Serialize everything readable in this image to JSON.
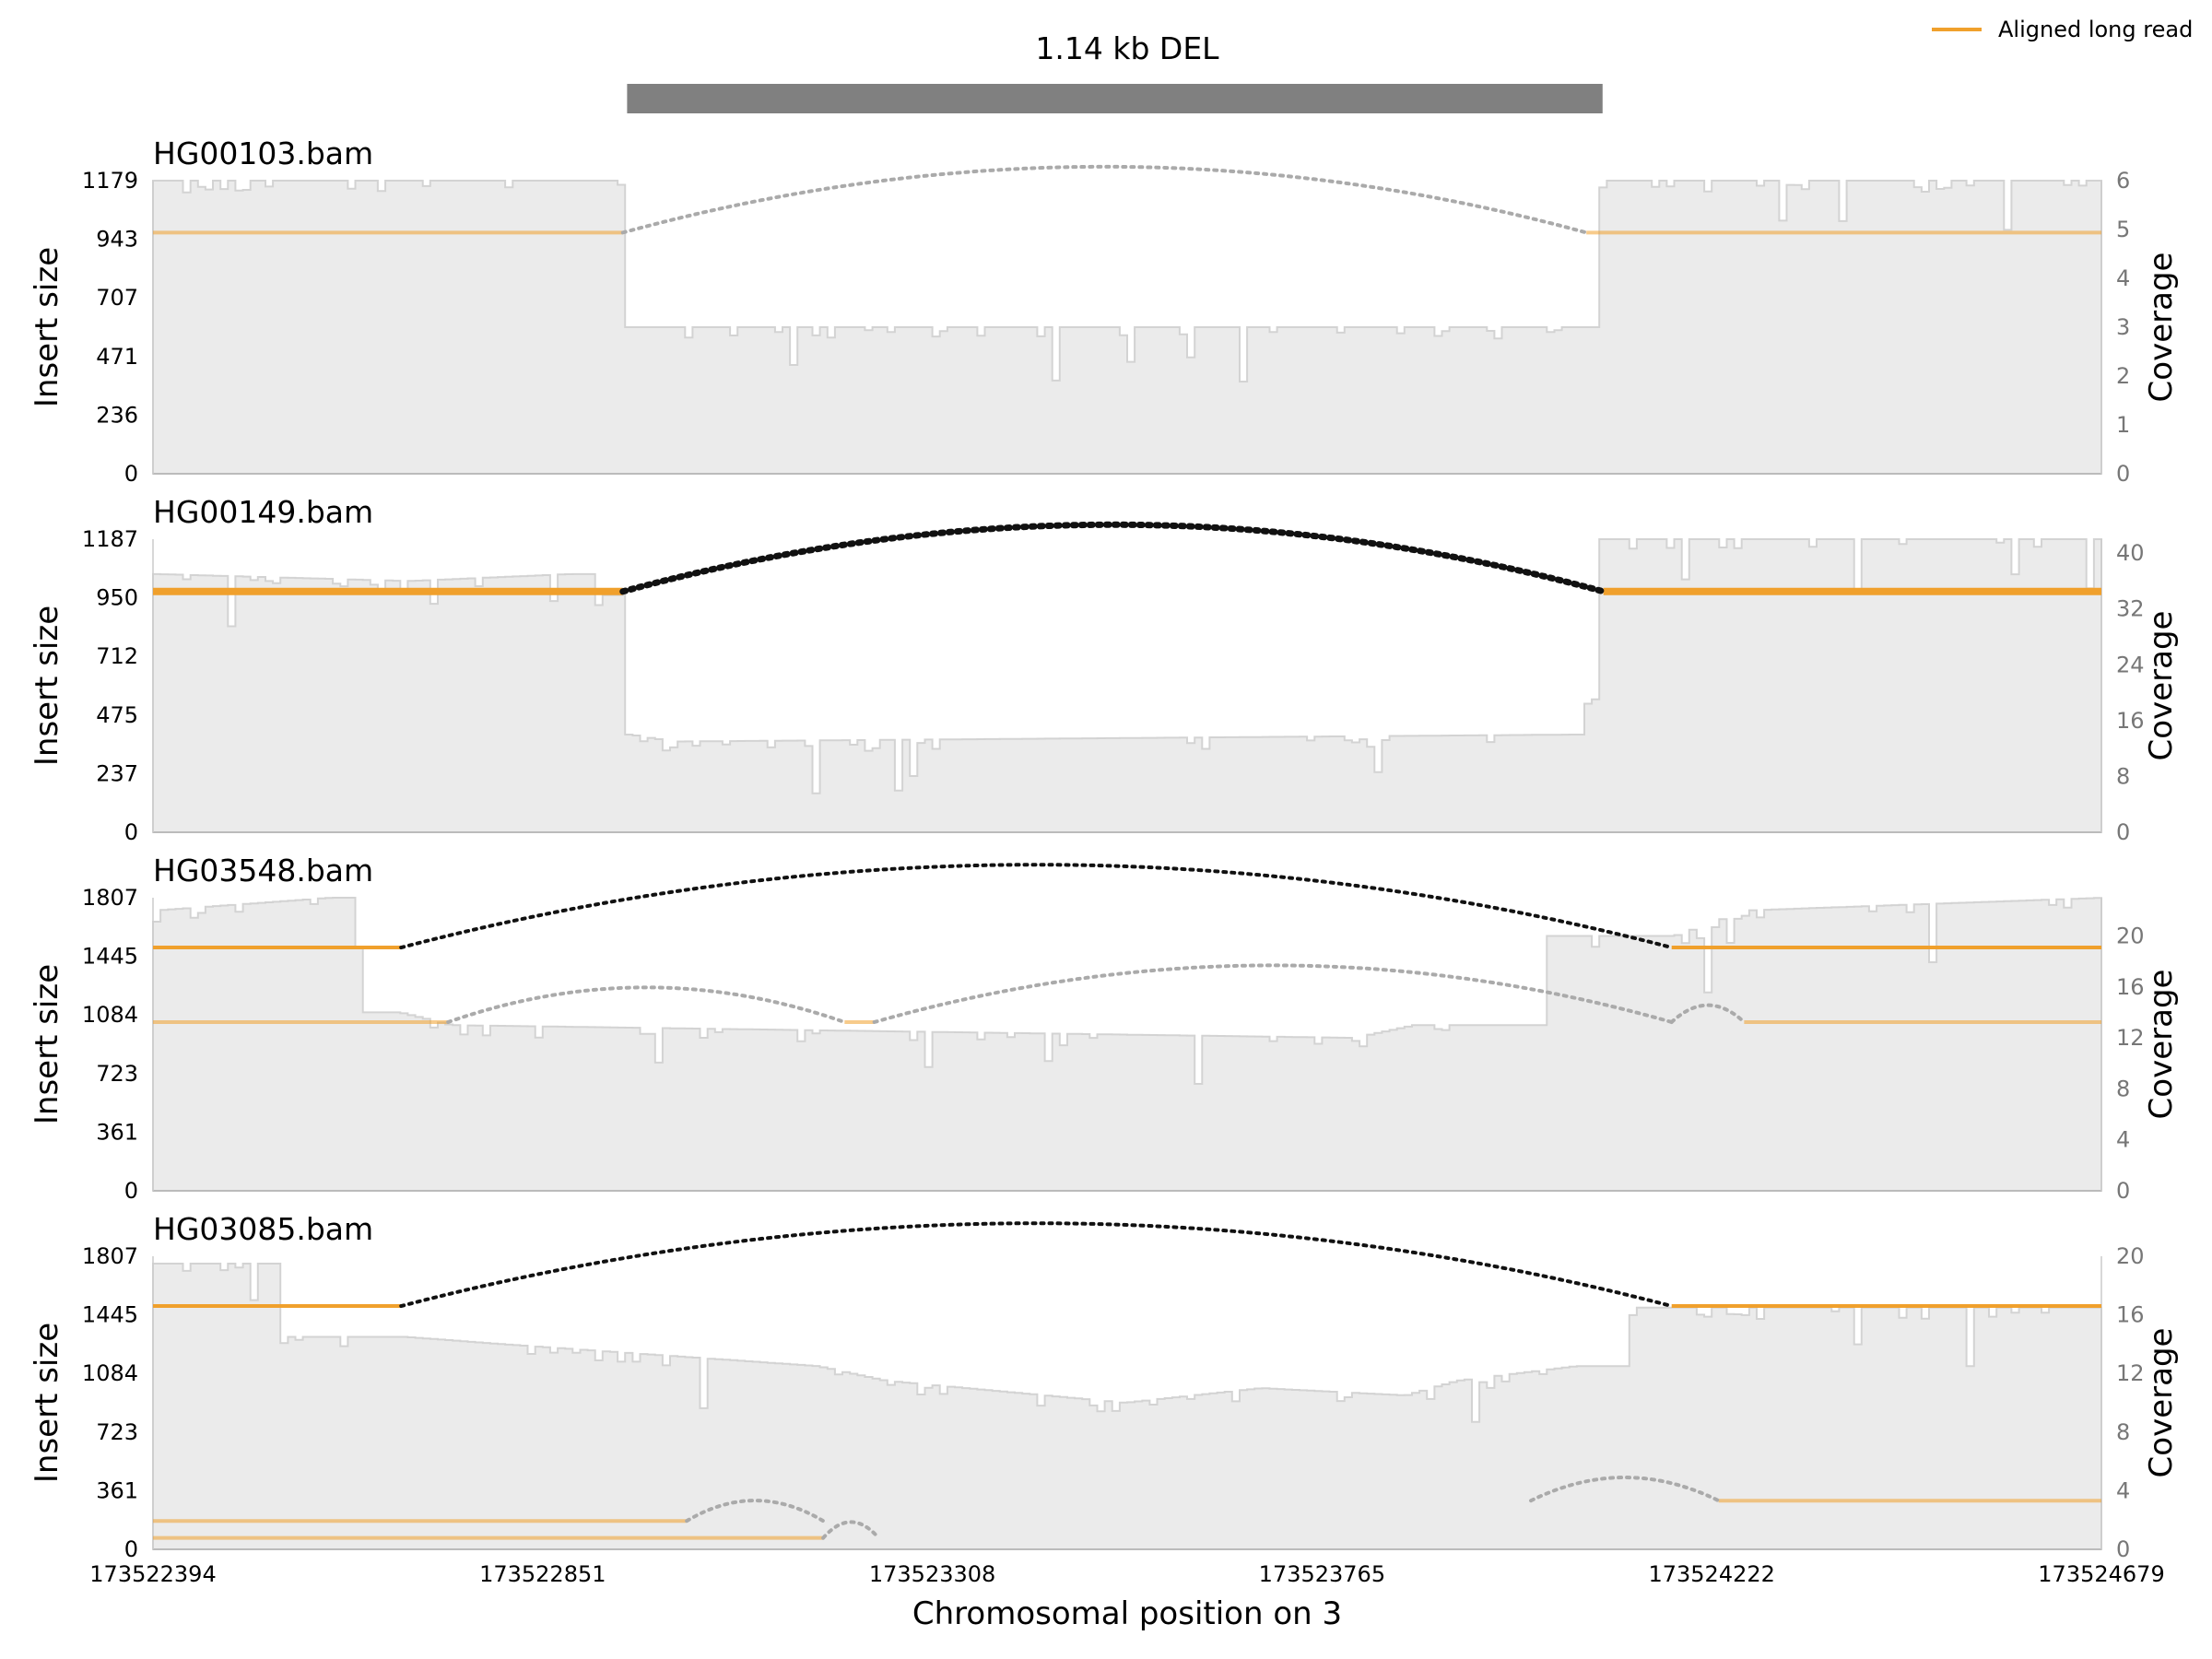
{
  "colors": {
    "long_read": "#f0a02c",
    "coverage_fill": "#ebebeb",
    "coverage_line": "#d3d3d3",
    "sv_bar": "#808080",
    "split_supported": "#111111",
    "split_other": "#aaaaaa"
  },
  "chart_data": {
    "type": "area",
    "title": "1.14 kb DEL",
    "xlabel": "Chromosomal position on 3",
    "xlim": [
      173522394,
      173524679
    ],
    "xticks": [
      "173522394",
      "173522851",
      "173523308",
      "173523765",
      "173524222",
      "173524679"
    ],
    "sv": {
      "type": "DEL",
      "label": "1.14 kb DEL",
      "start": 173522950,
      "end": 173524094
    },
    "legend": {
      "label": "Aligned long read",
      "position": "top-right"
    },
    "grid": false,
    "panels": [
      {
        "name": "HG00103.bam",
        "ylabel": "Insert size",
        "y2label": "Coverage",
        "ylim": [
          0,
          1179
        ],
        "yticks": [
          "0",
          "236",
          "471",
          "707",
          "943",
          "1179"
        ],
        "y2lim": [
          0,
          6
        ],
        "y2ticks": [
          "0",
          "1",
          "2",
          "3",
          "4",
          "5",
          "6"
        ],
        "coverage": [
          [
            173522394,
            6
          ],
          [
            173522945,
            6
          ],
          [
            173522950,
            3
          ],
          [
            173524080,
            3
          ],
          [
            173524095,
            6
          ],
          [
            173524679,
            6
          ]
        ],
        "reads": [
          {
            "y": 970,
            "start": 173522394,
            "end": 173522945,
            "split_to": 173524075,
            "y2": 970,
            "end2": 173524679,
            "supported": false
          }
        ]
      },
      {
        "name": "HG00149.bam",
        "ylabel": "Insert size",
        "y2label": "Coverage",
        "ylim": [
          0,
          1187
        ],
        "yticks": [
          "0",
          "237",
          "475",
          "712",
          "950",
          "1187"
        ],
        "y2lim": [
          0,
          42
        ],
        "y2ticks": [
          "0",
          "8",
          "16",
          "24",
          "32",
          "40"
        ],
        "coverage": [
          [
            173522394,
            37
          ],
          [
            173522690,
            36
          ],
          [
            173522880,
            37
          ],
          [
            173522945,
            34
          ],
          [
            173522950,
            14
          ],
          [
            173523000,
            13
          ],
          [
            173524060,
            14
          ],
          [
            173524080,
            20
          ],
          [
            173524095,
            42
          ],
          [
            173524679,
            42
          ]
        ],
        "reads": [
          {
            "y": 975,
            "start": 173522394,
            "end": 173522945,
            "split_to": 173524095,
            "y2": 975,
            "end2": 173524679,
            "supported": true,
            "thick": true
          }
        ]
      },
      {
        "name": "HG03548.bam",
        "ylabel": "Insert size",
        "y2label": "Coverage",
        "ylim": [
          0,
          1807
        ],
        "yticks": [
          "0",
          "361",
          "723",
          "1084",
          "1445",
          "1807"
        ],
        "y2lim": [
          0,
          23
        ],
        "y2ticks": [
          "0",
          "4",
          "8",
          "12",
          "16",
          "20"
        ],
        "coverage": [
          [
            173522394,
            22
          ],
          [
            173522600,
            23
          ],
          [
            173522680,
            14
          ],
          [
            173522740,
            13
          ],
          [
            173523800,
            12
          ],
          [
            173523870,
            13
          ],
          [
            173524175,
            20
          ],
          [
            173524260,
            22
          ],
          [
            173524679,
            23
          ]
        ],
        "reads": [
          {
            "y": 1500,
            "start": 173522394,
            "end": 173522685,
            "split_to": 173524175,
            "y2": 1500,
            "end2": 173524679,
            "supported": true
          },
          {
            "y": 1040,
            "start": 173522394,
            "end": 173522740,
            "split_to": 173523205,
            "y2": 1040,
            "end2": 173523240,
            "supported": false
          },
          {
            "y": 1040,
            "start": 173523240,
            "end": 173523240,
            "split_to": 173524175,
            "y2": 1040,
            "end2": 173524175,
            "supported": false
          },
          {
            "y": 1040,
            "start": 173524175,
            "end": 173524175,
            "split_to": 173524260,
            "y2": 1040,
            "end2": 173524679,
            "supported": false
          }
        ]
      },
      {
        "name": "HG03085.bam",
        "ylabel": "Insert size",
        "y2label": "Coverage",
        "ylim": [
          0,
          1807
        ],
        "yticks": [
          "0",
          "361",
          "723",
          "1084",
          "1445",
          "1807"
        ],
        "y2lim": [
          0,
          20
        ],
        "y2ticks": [
          "0",
          "4",
          "8",
          "12",
          "16",
          "20"
        ],
        "coverage": [
          [
            173522394,
            19.5
          ],
          [
            173522685,
            14.5
          ],
          [
            173522800,
            14
          ],
          [
            173523170,
            12.5
          ],
          [
            173523250,
            11.5
          ],
          [
            173523530,
            10
          ],
          [
            173523690,
            11
          ],
          [
            173523860,
            10.5
          ],
          [
            173523920,
            11.5
          ],
          [
            173524060,
            12.5
          ],
          [
            173524175,
            16.5
          ],
          [
            173524679,
            16.5
          ]
        ],
        "reads": [
          {
            "y": 1500,
            "start": 173522394,
            "end": 173522685,
            "split_to": 173524175,
            "y2": 1500,
            "end2": 173524679,
            "supported": true
          },
          {
            "y": 175,
            "start": 173522394,
            "end": 173523020,
            "split_to": 173523180,
            "y2": 175,
            "end2": 173523180,
            "supported": false
          },
          {
            "y": 70,
            "start": 173522394,
            "end": 173523180,
            "split_to": 173523245,
            "y2": 70,
            "end2": 173523245,
            "supported": false
          },
          {
            "y": 300,
            "start": 173524010,
            "end": 173524010,
            "split_to": 173524230,
            "y2": 300,
            "end2": 173524679,
            "supported": false
          }
        ]
      }
    ]
  }
}
